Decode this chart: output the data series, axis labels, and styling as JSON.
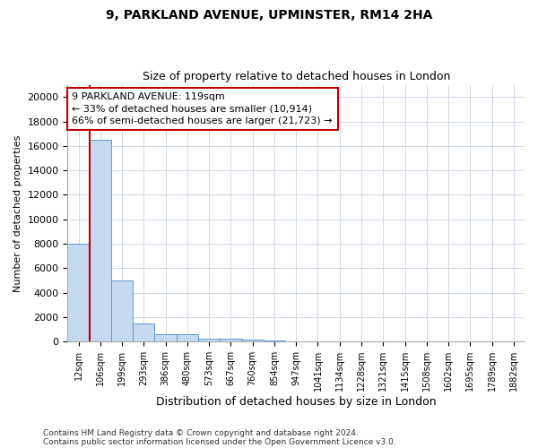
{
  "title1": "9, PARKLAND AVENUE, UPMINSTER, RM14 2HA",
  "title2": "Size of property relative to detached houses in London",
  "xlabel": "Distribution of detached houses by size in London",
  "ylabel": "Number of detached properties",
  "categories": [
    "12sqm",
    "106sqm",
    "199sqm",
    "293sqm",
    "386sqm",
    "480sqm",
    "573sqm",
    "667sqm",
    "760sqm",
    "854sqm",
    "947sqm",
    "1041sqm",
    "1134sqm",
    "1228sqm",
    "1321sqm",
    "1415sqm",
    "1508sqm",
    "1602sqm",
    "1695sqm",
    "1789sqm",
    "1882sqm"
  ],
  "values": [
    8000,
    16500,
    5000,
    1500,
    600,
    580,
    250,
    240,
    150,
    100,
    0,
    0,
    0,
    0,
    0,
    0,
    0,
    0,
    0,
    0,
    0
  ],
  "bar_color": "#c6d9f0",
  "bar_edge_color": "#5b9bd5",
  "vline_bar_index": 1,
  "vline_color": "#c00000",
  "annotation_text": "9 PARKLAND AVENUE: 119sqm\n← 33% of detached houses are smaller (10,914)\n66% of semi-detached houses are larger (21,723) →",
  "annotation_box_color": "#ffffff",
  "annotation_box_edge_color": "#c00000",
  "ylim": [
    0,
    21000
  ],
  "yticks": [
    0,
    2000,
    4000,
    6000,
    8000,
    10000,
    12000,
    14000,
    16000,
    18000,
    20000
  ],
  "footer1": "Contains HM Land Registry data © Crown copyright and database right 2024.",
  "footer2": "Contains public sector information licensed under the Open Government Licence v3.0.",
  "bg_color": "#ffffff",
  "grid_color": "#d0d8e8"
}
